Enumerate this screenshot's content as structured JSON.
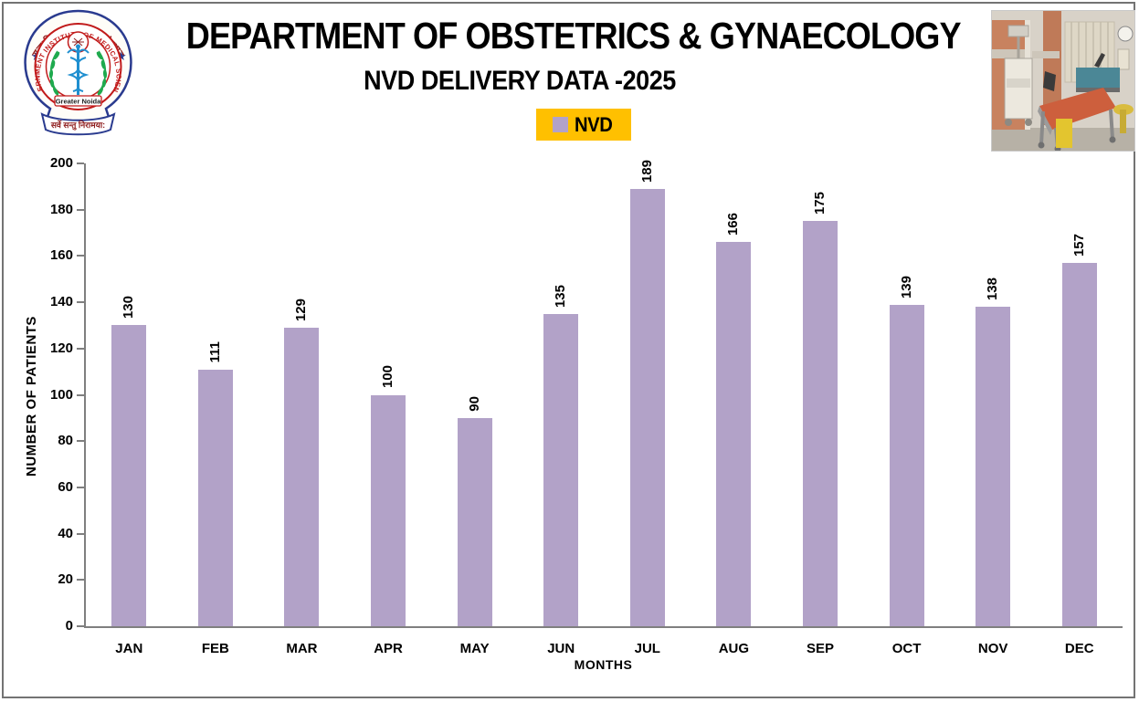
{
  "header": {
    "title": "DEPARTMENT OF OBSTETRICS & GYNAECOLOGY",
    "subtitle": "NVD DELIVERY DATA -2025"
  },
  "logo": {
    "top_text": "राजकीय आयुर्विज्ञान संस्थान",
    "ring_text": "GOVERNMENT INSTITUTE OF MEDICAL SCIENCES",
    "banner_text": "Greater Noida",
    "bottom_text": "सर्वे सन्तु निरामया:",
    "border_color": "#2a3b8f",
    "ring_color": "#c11b1b",
    "laurel_color": "#1faa4e",
    "caduceus_color": "#1f8fd0"
  },
  "legend": {
    "label": "NVD",
    "bg_color": "#ffc000",
    "swatch_color": "#b2a2c8"
  },
  "chart_data": {
    "type": "bar",
    "title": "NVD DELIVERY DATA -2025",
    "series_label": "NVD",
    "categories": [
      "JAN",
      "FEB",
      "MAR",
      "APR",
      "MAY",
      "JUN",
      "JUL",
      "AUG",
      "SEP",
      "OCT",
      "NOV",
      "DEC"
    ],
    "values": [
      130,
      111,
      129,
      100,
      90,
      135,
      189,
      166,
      175,
      139,
      138,
      157
    ],
    "xlabel": "MONTHS",
    "ylabel": "NUMBER OF PATIENTS",
    "ylim": [
      0,
      200
    ],
    "yticks": [
      0,
      20,
      40,
      60,
      80,
      100,
      120,
      140,
      160,
      180,
      200
    ],
    "bar_color": "#b2a2c8",
    "axis_color": "#7f7f7f",
    "grid": false,
    "legend_position": "top-center",
    "value_labels_rotated": true
  }
}
